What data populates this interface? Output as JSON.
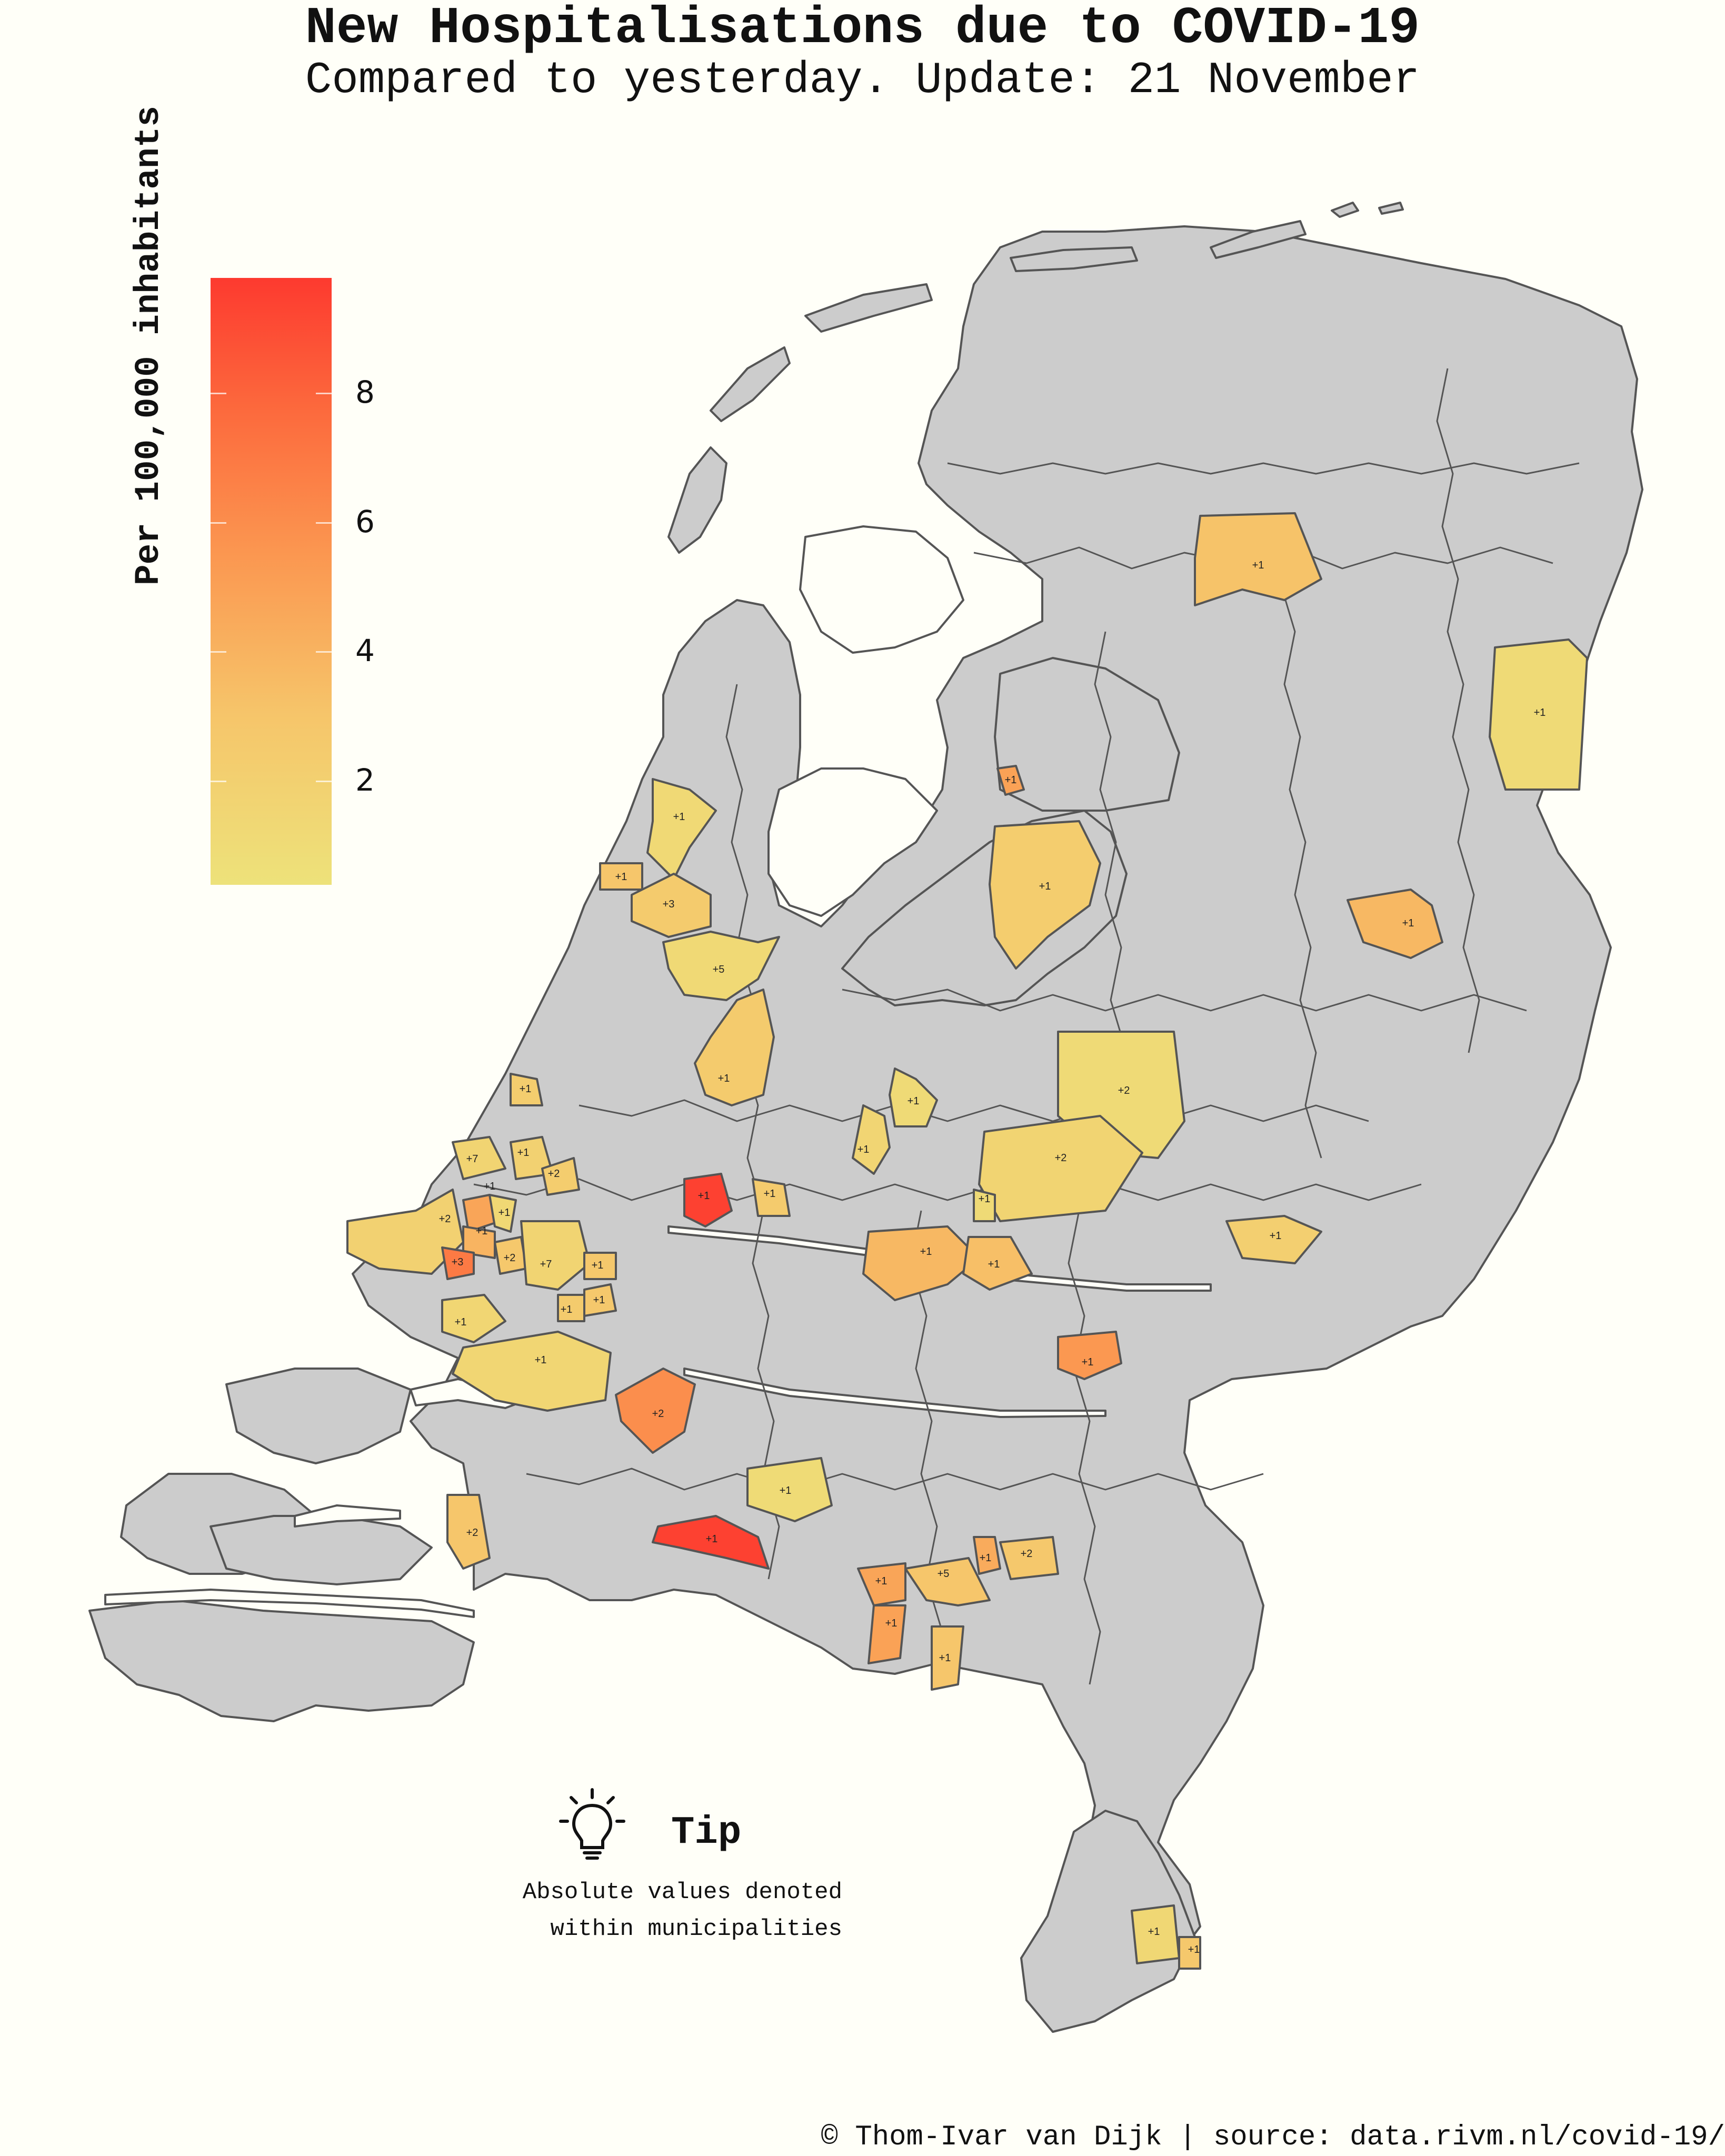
{
  "title": "New Hospitalisations due to COVID-19",
  "subtitle": "Compared to yesterday. Update: 21 November",
  "legend": {
    "title": "Per 100,000 inhabitants",
    "ticks": [
      "2",
      "4",
      "6",
      "8"
    ],
    "colors": {
      "low": "#ede27a",
      "high": "#fd3a2f"
    }
  },
  "tip": {
    "title": "Tip",
    "line1": "Absolute values denoted",
    "line2": "within municipalities",
    "icon": "lightbulb-icon"
  },
  "credit": "© Thom-Ivar van Dijk | source: data.rivm.nl/covid-19/",
  "map": {
    "base_color": "#cccccc",
    "border_color": "#555555",
    "water_color": "#fffff8",
    "municipalities": [
      {
        "label": "+1",
        "value": 3.2
      },
      {
        "label": "+1",
        "value": 1.2
      },
      {
        "label": "+1",
        "value": 5.0
      },
      {
        "label": "+1",
        "value": 2.4
      },
      {
        "label": "+1",
        "value": 3.8
      },
      {
        "label": "+1",
        "value": 1.3
      },
      {
        "label": "+1",
        "value": 3.0
      },
      {
        "label": "+3",
        "value": 2.6
      },
      {
        "label": "+5",
        "value": 1.3
      },
      {
        "label": "+1",
        "value": 2.6
      },
      {
        "label": "+1",
        "value": 2.4
      },
      {
        "label": "+1",
        "value": 1.2
      },
      {
        "label": "+2",
        "value": 1.2
      },
      {
        "label": "+1",
        "value": 1.7
      },
      {
        "label": "+2",
        "value": 1.8
      },
      {
        "label": "+7",
        "value": 1.8
      },
      {
        "label": "+1",
        "value": 2.0
      },
      {
        "label": "+2",
        "value": 2.4
      },
      {
        "label": "+2",
        "value": 2.0
      },
      {
        "label": "+1",
        "value": 4.8
      },
      {
        "label": "+1",
        "value": 1.4
      },
      {
        "label": "+1",
        "value": 4.0
      },
      {
        "label": "+3",
        "value": 7.0
      },
      {
        "label": "+2",
        "value": 2.8
      },
      {
        "label": "+7",
        "value": 1.8
      },
      {
        "label": "+1",
        "value": 2.8
      },
      {
        "label": "+1",
        "value": 9.5
      },
      {
        "label": "+1",
        "value": 2.6
      },
      {
        "label": "+1",
        "value": 1.2
      },
      {
        "label": "+1",
        "value": 3.8
      },
      {
        "label": "+1",
        "value": 3.4
      },
      {
        "label": "+1",
        "value": 2.2
      },
      {
        "label": "+1",
        "value": 2.8
      },
      {
        "label": "+1",
        "value": 2.6
      },
      {
        "label": "+1",
        "value": 1.6
      },
      {
        "label": "+1",
        "value": 1.6
      },
      {
        "label": "+1",
        "value": 5.5
      },
      {
        "label": "+2",
        "value": 6.0
      },
      {
        "label": "+1",
        "value": 1.1
      },
      {
        "label": "+2",
        "value": 3.0
      },
      {
        "label": "+1",
        "value": 9.5
      },
      {
        "label": "+5",
        "value": 3.0
      },
      {
        "label": "+1",
        "value": 4.5
      },
      {
        "label": "+2",
        "value": 2.8
      },
      {
        "label": "+1",
        "value": 4.8
      },
      {
        "label": "+1",
        "value": 5.0
      },
      {
        "label": "+1",
        "value": 3.0
      },
      {
        "label": "+1",
        "value": 1.5
      },
      {
        "label": "+1",
        "value": 2.8
      }
    ]
  }
}
